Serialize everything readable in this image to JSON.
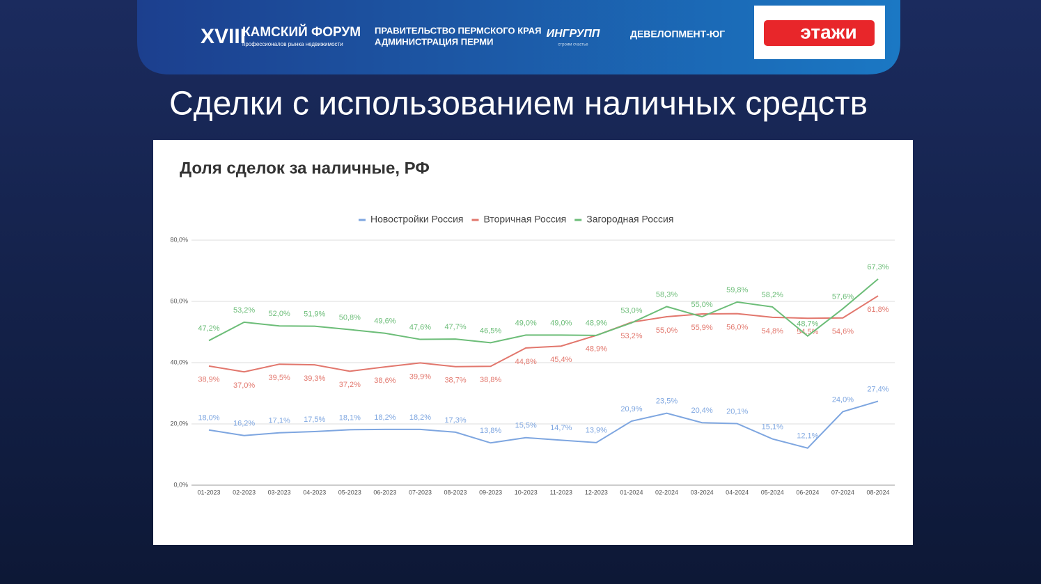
{
  "header": {
    "forum_number": "XVIII",
    "forum_name": "КАМСКИЙ ФОРУМ",
    "forum_subtitle": "профессионалов рынка недвижимости",
    "partner_1_line_1": "ПРАВИТЕЛЬСТВО ПЕРМСКОГО КРАЯ",
    "partner_1_line_2": "АДМИНИСТРАЦИЯ ПЕРМИ",
    "partner_2": "ИНГРУПП",
    "partner_2_slogan": "строим счастье",
    "partner_3": "ДЕВЕЛОПМЕНТ-ЮГ",
    "partner_4": "этажи"
  },
  "slide_title": "Сделки с использованием наличных средств",
  "chart_data": {
    "type": "line",
    "title": "Доля сделок за наличные, РФ",
    "categories": [
      "01-2023",
      "02-2023",
      "03-2023",
      "04-2023",
      "05-2023",
      "06-2023",
      "07-2023",
      "08-2023",
      "09-2023",
      "10-2023",
      "11-2023",
      "12-2023",
      "01-2024",
      "02-2024",
      "03-2024",
      "04-2024",
      "05-2024",
      "06-2024",
      "07-2024",
      "08-2024"
    ],
    "series": [
      {
        "name": "Новостройки Россия",
        "color": "#7ea6e0",
        "values": [
          18.0,
          16.2,
          17.1,
          17.5,
          18.1,
          18.2,
          18.2,
          17.3,
          13.8,
          15.5,
          14.7,
          13.9,
          20.9,
          23.5,
          20.4,
          20.1,
          15.1,
          12.1,
          24.0,
          27.4
        ],
        "value_labels": [
          "18,0%",
          "16,2%",
          "17,1%",
          "17,5%",
          "18,1%",
          "18,2%",
          "18,2%",
          "17,3%",
          "13,8%",
          "15,5%",
          "14,7%",
          "13,9%",
          "20,9%",
          "23,5%",
          "20,4%",
          "20,1%",
          "15,1%",
          "12,1%",
          "24,0%",
          "27,4%"
        ]
      },
      {
        "name": "Вторичная Россия",
        "color": "#e2776d",
        "values": [
          38.9,
          37.0,
          39.5,
          39.3,
          37.2,
          38.6,
          39.9,
          38.7,
          38.8,
          44.8,
          45.4,
          48.9,
          53.2,
          55.0,
          55.9,
          56.0,
          54.8,
          54.5,
          54.6,
          61.8
        ],
        "value_labels": [
          "38,9%",
          "37,0%",
          "39,5%",
          "39,3%",
          "37,2%",
          "38,6%",
          "39,9%",
          "38,7%",
          "38,8%",
          "44,8%",
          "45,4%",
          "48,9%",
          "53,2%",
          "55,0%",
          "55,9%",
          "56,0%",
          "54,8%",
          "54,5%",
          "54,6%",
          "61,8%"
        ]
      },
      {
        "name": "Загородная Россия",
        "color": "#6cbd78",
        "values": [
          47.2,
          53.2,
          52.0,
          51.9,
          50.8,
          49.6,
          47.6,
          47.7,
          46.5,
          49.0,
          49.0,
          48.9,
          53.0,
          58.3,
          55.0,
          59.8,
          58.2,
          48.7,
          57.6,
          67.3
        ],
        "value_labels": [
          "47,2%",
          "53,2%",
          "52,0%",
          "51,9%",
          "50,8%",
          "49,6%",
          "47,6%",
          "47,7%",
          "46,5%",
          "49,0%",
          "49,0%",
          "48,9%",
          "53,0%",
          "58,3%",
          "55,0%",
          "59,8%",
          "58,2%",
          "48,7%",
          "57,6%",
          "67,3%"
        ]
      }
    ],
    "ylim": [
      0,
      80
    ],
    "yticks": [
      {
        "value": 0,
        "label": "0,0%"
      },
      {
        "value": 20,
        "label": "20,0%"
      },
      {
        "value": 40,
        "label": "40,0%"
      },
      {
        "value": 60,
        "label": "60,0%"
      },
      {
        "value": 80,
        "label": "80,0%"
      }
    ],
    "grid": true,
    "legend": "top"
  }
}
